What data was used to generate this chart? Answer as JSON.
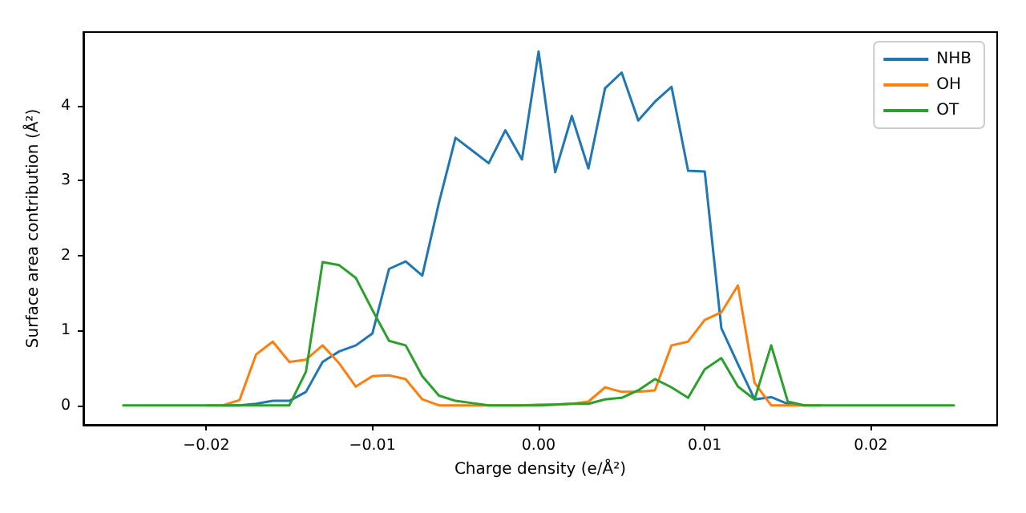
{
  "chart_data": {
    "type": "line",
    "xlabel": "Charge density (e/Å²)",
    "ylabel": "Surface area contribution (Å²)",
    "x": [
      -0.025,
      -0.024,
      -0.023,
      -0.022,
      -0.021,
      -0.02,
      -0.019,
      -0.018,
      -0.017,
      -0.016,
      -0.015,
      -0.014,
      -0.013,
      -0.012,
      -0.011,
      -0.01,
      -0.009,
      -0.008,
      -0.007,
      -0.006,
      -0.005,
      -0.004,
      -0.003,
      -0.002,
      -0.001,
      0,
      0.001,
      0.002,
      0.003,
      0.004,
      0.005,
      0.006,
      0.007,
      0.008,
      0.009,
      0.01,
      0.011,
      0.012,
      0.013,
      0.014,
      0.015,
      0.016,
      0.017,
      0.018,
      0.019,
      0.02,
      0.021,
      0.022,
      0.023,
      0.024,
      0.025
    ],
    "series": [
      {
        "name": "NHB",
        "color": "#1f77b4",
        "values": [
          null,
          null,
          null,
          null,
          null,
          null,
          0,
          0,
          0.02,
          0.06,
          0.06,
          0.18,
          0.58,
          0.72,
          0.8,
          0.96,
          1.82,
          1.92,
          1.73,
          2.7,
          3.57,
          3.4,
          3.23,
          3.67,
          3.28,
          4.72,
          3.11,
          3.86,
          3.16,
          4.23,
          4.44,
          3.8,
          4.05,
          4.25,
          3.13,
          3.12,
          1.03,
          0.55,
          0.08,
          0.11,
          0.02,
          0,
          null,
          null,
          null,
          null,
          null,
          null,
          null,
          null,
          null
        ]
      },
      {
        "name": "OH",
        "color": "#ff7f0e",
        "values": [
          null,
          null,
          null,
          null,
          null,
          0,
          0,
          0.07,
          0.68,
          0.85,
          0.58,
          0.61,
          0.8,
          0.56,
          0.25,
          0.39,
          0.4,
          0.35,
          0.08,
          0,
          0,
          0,
          0,
          0,
          0,
          0.01,
          0.01,
          0.02,
          0.05,
          0.24,
          0.18,
          0.18,
          0.2,
          0.8,
          0.85,
          1.14,
          1.24,
          1.6,
          0.3,
          0,
          0,
          0,
          0,
          null,
          null,
          null,
          null,
          null,
          null,
          null,
          null
        ]
      },
      {
        "name": "OT",
        "color": "#2ca02c",
        "values": [
          0,
          0,
          0,
          0,
          0,
          0,
          0,
          0,
          0,
          0,
          0,
          0.45,
          1.91,
          1.87,
          1.7,
          1.27,
          0.86,
          0.8,
          0.39,
          0.13,
          0.06,
          0.03,
          0,
          0,
          0,
          0,
          0.01,
          0.02,
          0.02,
          0.08,
          0.1,
          0.2,
          0.35,
          0.24,
          0.1,
          0.48,
          0.63,
          0.25,
          0.08,
          0.8,
          0.05,
          0,
          0,
          0,
          0,
          0,
          0,
          0,
          0,
          0,
          0
        ]
      }
    ],
    "xlim": [
      -0.0274,
      0.0276
    ],
    "ylim": [
      -0.26,
      4.98
    ],
    "xticks": [
      {
        "value": -0.02,
        "label": "−0.02"
      },
      {
        "value": -0.01,
        "label": "−0.01"
      },
      {
        "value": 0,
        "label": "0.00"
      },
      {
        "value": 0.01,
        "label": "0.01"
      },
      {
        "value": 0.02,
        "label": "0.02"
      }
    ],
    "yticks": [
      0,
      1,
      2,
      3,
      4
    ],
    "grid": false,
    "legend": "top right",
    "marker": "none",
    "line_style": "solid"
  }
}
